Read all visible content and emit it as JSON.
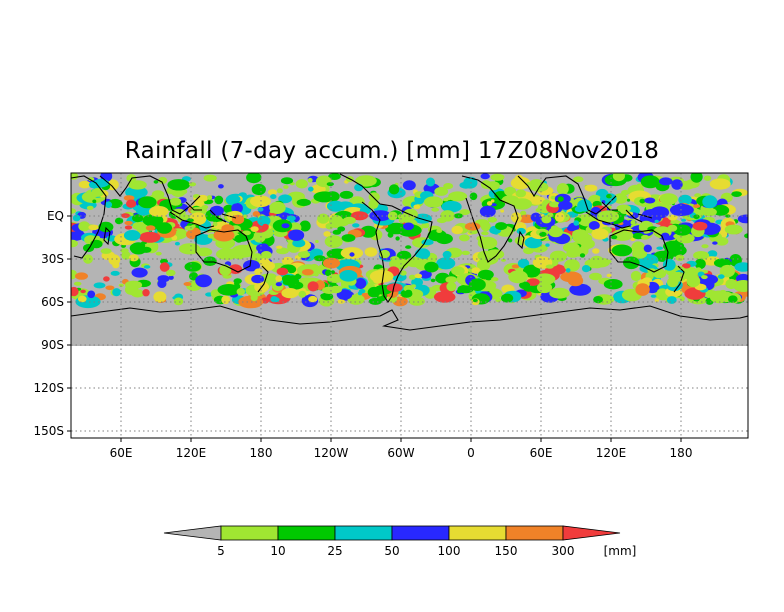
{
  "title": "Rainfall (7-day accum.) [mm] 17Z08Nov2018",
  "map": {
    "projection": "cylindrical (lat/lon)",
    "background": "#ffffff",
    "no_rain_color": "#b4b4b4",
    "coastline_color": "#000000",
    "grid_style": "dotted",
    "lat_labels": [
      "EQ",
      "30S",
      "60S",
      "90S",
      "120S",
      "150S"
    ],
    "lon_labels": [
      "60E",
      "120E",
      "180",
      "120W",
      "60W",
      "0",
      "60E",
      "120E",
      "180"
    ]
  },
  "colorbar": {
    "unit": "[mm]",
    "thresholds": [
      "5",
      "10",
      "25",
      "50",
      "100",
      "150",
      "300"
    ],
    "colors": [
      "#b4b4b4",
      "#a0e632",
      "#00c800",
      "#00c8c8",
      "#2828ff",
      "#e6dc32",
      "#f08228",
      "#f03c3c"
    ]
  }
}
